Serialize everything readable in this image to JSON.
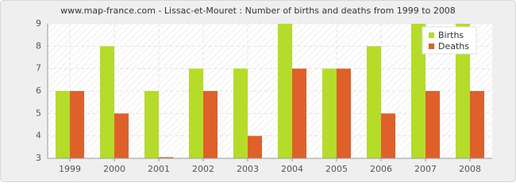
{
  "chart_data": {
    "type": "bar",
    "title": "www.map-france.com - Lissac-et-Mouret : Number of births and deaths from 1999 to 2008",
    "categories": [
      "1999",
      "2000",
      "2001",
      "2002",
      "2003",
      "2004",
      "2005",
      "2006",
      "2007",
      "2008"
    ],
    "series": [
      {
        "name": "Births",
        "color": "#b5dc28",
        "values": [
          6,
          8,
          6,
          7,
          7,
          9,
          7,
          8,
          9,
          9
        ]
      },
      {
        "name": "Deaths",
        "color": "#e0602c",
        "values": [
          6,
          5,
          3,
          6,
          4,
          7,
          7,
          5,
          6,
          6
        ]
      }
    ],
    "ylim": [
      3,
      9
    ],
    "yticks": [
      3,
      4,
      5,
      6,
      7,
      8,
      9
    ],
    "grid": true,
    "legend": "top-right"
  }
}
